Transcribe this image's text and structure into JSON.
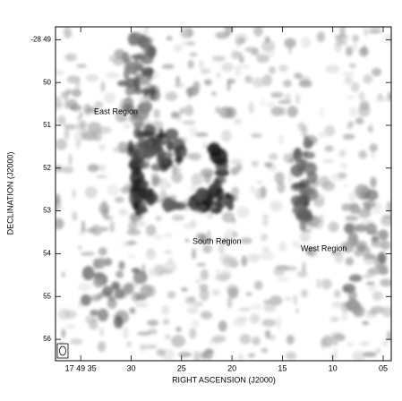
{
  "chart_data": {
    "type": "image",
    "x_label": "RIGHT ASCENSION (J2000)",
    "y_label": "DECLINATION (J2000)",
    "xlim": [
      37.5,
      4.2
    ],
    "xticks": [
      {
        "value": 35,
        "label": "17 49 35"
      },
      30,
      25,
      20,
      15,
      10,
      {
        "value": 5,
        "label": "05"
      }
    ],
    "ylim": [
      48.7,
      56.5
    ],
    "yticks": [
      {
        "value": 49,
        "label": "-28 49"
      },
      50,
      51,
      52,
      53,
      54,
      55,
      56
    ],
    "annotations": [
      "East Region",
      "South Region",
      "West Region"
    ]
  }
}
